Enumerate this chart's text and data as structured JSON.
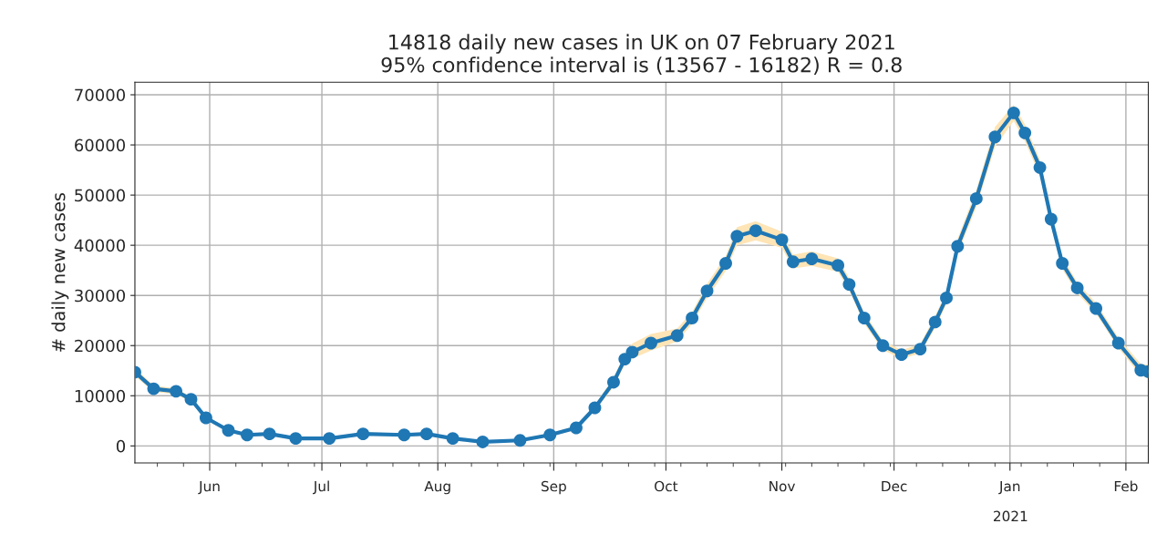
{
  "chart_data": {
    "type": "line",
    "title": "14818 daily new cases in UK on 07 February 2021",
    "subtitle": "95% confidence interval is (13567 - 16182) R = 0.8",
    "ylabel": "# daily new cases",
    "annotations": [
      "2021"
    ],
    "x": [
      "2020-05-12",
      "2020-05-17",
      "2020-05-23",
      "2020-05-27",
      "2020-05-31",
      "2020-06-06",
      "2020-06-11",
      "2020-06-17",
      "2020-06-24",
      "2020-07-03",
      "2020-07-12",
      "2020-07-23",
      "2020-07-29",
      "2020-08-05",
      "2020-08-13",
      "2020-08-23",
      "2020-08-31",
      "2020-09-07",
      "2020-09-12",
      "2020-09-17",
      "2020-09-20",
      "2020-09-22",
      "2020-09-27",
      "2020-10-04",
      "2020-10-08",
      "2020-10-12",
      "2020-10-17",
      "2020-10-20",
      "2020-10-25",
      "2020-11-01",
      "2020-11-04",
      "2020-11-09",
      "2020-11-16",
      "2020-11-19",
      "2020-11-23",
      "2020-11-28",
      "2020-12-03",
      "2020-12-08",
      "2020-12-12",
      "2020-12-15",
      "2020-12-18",
      "2020-12-23",
      "2020-12-28",
      "2021-01-02",
      "2021-01-05",
      "2021-01-09",
      "2021-01-12",
      "2021-01-15",
      "2021-01-19",
      "2021-01-24",
      "2021-01-30",
      "2021-02-05",
      "2021-02-07"
    ],
    "series": [
      {
        "color": "#1f77b4",
        "values": [
          14700,
          11400,
          10900,
          9300,
          5600,
          3100,
          2200,
          2400,
          1500,
          1500,
          2400,
          2200,
          2400,
          1500,
          800,
          1100,
          2200,
          3600,
          7600,
          12700,
          17300,
          18700,
          20500,
          22000,
          25500,
          30900,
          36400,
          41800,
          42900,
          41100,
          36700,
          37300,
          36000,
          32200,
          25500,
          20000,
          18200,
          19300,
          24700,
          29500,
          39800,
          49300,
          61600,
          66400,
          62400,
          55500,
          45200,
          36400,
          31500,
          27400,
          20500,
          15100,
          14818
        ],
        "lower": [
          13900,
          10800,
          10300,
          8800,
          5200,
          2800,
          1900,
          2100,
          1200,
          1200,
          2100,
          1900,
          2100,
          1200,
          600,
          900,
          1900,
          3200,
          7000,
          11800,
          16200,
          17400,
          19000,
          20800,
          24300,
          29500,
          34900,
          40000,
          41000,
          39500,
          35400,
          35900,
          34700,
          31000,
          24400,
          19100,
          17400,
          18400,
          23500,
          28200,
          38300,
          47600,
          59600,
          64800,
          60700,
          53900,
          43800,
          35200,
          30400,
          26400,
          19500,
          14000,
          13567
        ],
        "upper": [
          15600,
          12000,
          11500,
          9800,
          6000,
          3400,
          2500,
          2700,
          1800,
          1800,
          2700,
          2500,
          2700,
          1800,
          1000,
          1300,
          2500,
          4000,
          8200,
          13600,
          18400,
          20400,
          22300,
          23400,
          26700,
          32300,
          37900,
          43600,
          44800,
          42700,
          38100,
          38800,
          37400,
          33500,
          26600,
          21000,
          19100,
          20300,
          25900,
          30800,
          41300,
          51000,
          63600,
          68000,
          64100,
          57100,
          46700,
          37700,
          32600,
          28500,
          21600,
          16300,
          16182
        ]
      }
    ],
    "xlim": [
      "2020-05-12",
      "2021-02-07"
    ],
    "xticks": [
      {
        "value": "2020-06-01",
        "label": "Jun"
      },
      {
        "value": "2020-07-01",
        "label": "Jul"
      },
      {
        "value": "2020-08-01",
        "label": "Aug"
      },
      {
        "value": "2020-09-01",
        "label": "Sep"
      },
      {
        "value": "2020-10-01",
        "label": "Oct"
      },
      {
        "value": "2020-11-01",
        "label": "Nov"
      },
      {
        "value": "2020-12-01",
        "label": "Dec"
      },
      {
        "value": "2021-01-01",
        "label": "Jan"
      },
      {
        "value": "2021-02-01",
        "label": "Feb"
      }
    ],
    "ylim": [
      -3400,
      72500
    ],
    "yticks": [
      0,
      10000,
      20000,
      30000,
      40000,
      50000,
      60000,
      70000
    ],
    "grid": true,
    "marker": "circle",
    "line_style": "solid"
  }
}
